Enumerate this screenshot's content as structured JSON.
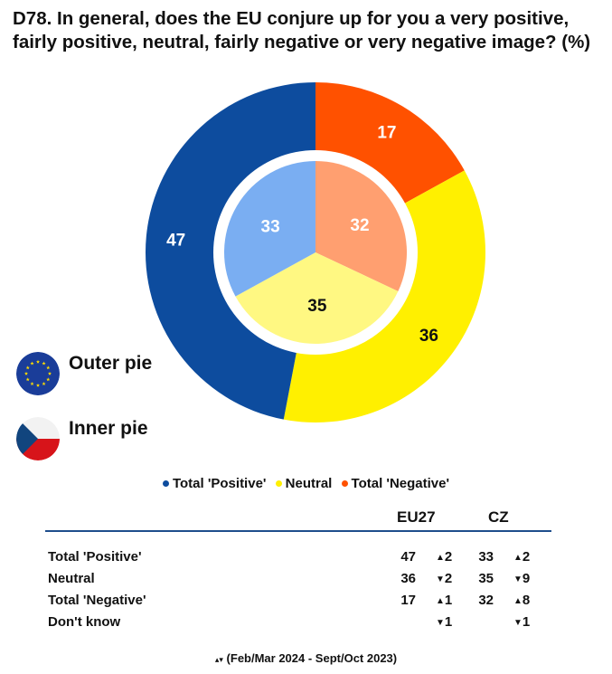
{
  "title": "D78. In general, does the EU conjure up for you a very positive, fairly positive, neutral, fairly negative or very negative image? (%)",
  "flags": {
    "outer": {
      "label": "Outer pie",
      "icon": "eu-flag-icon"
    },
    "inner": {
      "label": "Inner pie",
      "icon": "czech-flag-icon"
    }
  },
  "legend": [
    {
      "label": "Total 'Positive'",
      "color": "#0d4c9e"
    },
    {
      "label": "Neutral",
      "color": "#fff000"
    },
    {
      "label": "Total 'Negative'",
      "color": "#ff5100"
    }
  ],
  "chart_data": {
    "type": "pie",
    "title": "D78. In general, does the EU conjure up for you a very positive, fairly positive, neutral, fairly negative or very negative image? (%)",
    "categories": [
      "Total 'Positive'",
      "Neutral",
      "Total 'Negative'"
    ],
    "series": [
      {
        "name": "Outer pie",
        "values": [
          47,
          36,
          17
        ],
        "colors": [
          "#0d4c9e",
          "#fff000",
          "#ff5100"
        ]
      },
      {
        "name": "Inner pie",
        "values": [
          33,
          35,
          32
        ],
        "colors": [
          "#7aaef2",
          "#fff882",
          "#ff9f70"
        ]
      }
    ],
    "legend_position": "bottom"
  },
  "table": {
    "headers": [
      "EU27",
      "CZ"
    ],
    "rows": [
      {
        "label": "Total 'Positive'",
        "eu": "47",
        "eu_dir": "up",
        "eu_chg": "2",
        "cz": "33",
        "cz_dir": "up",
        "cz_chg": "2"
      },
      {
        "label": "Neutral",
        "eu": "36",
        "eu_dir": "down",
        "eu_chg": "2",
        "cz": "35",
        "cz_dir": "down",
        "cz_chg": "9"
      },
      {
        "label": "Total 'Negative'",
        "eu": "17",
        "eu_dir": "up",
        "eu_chg": "1",
        "cz": "32",
        "cz_dir": "up",
        "cz_chg": "8"
      },
      {
        "label": "Don't know",
        "eu": "",
        "eu_dir": "down",
        "eu_chg": "1",
        "cz": "",
        "cz_dir": "down",
        "cz_chg": "1"
      }
    ]
  },
  "footnote": "(Feb/Mar 2024 - Sept/Oct 2023)"
}
